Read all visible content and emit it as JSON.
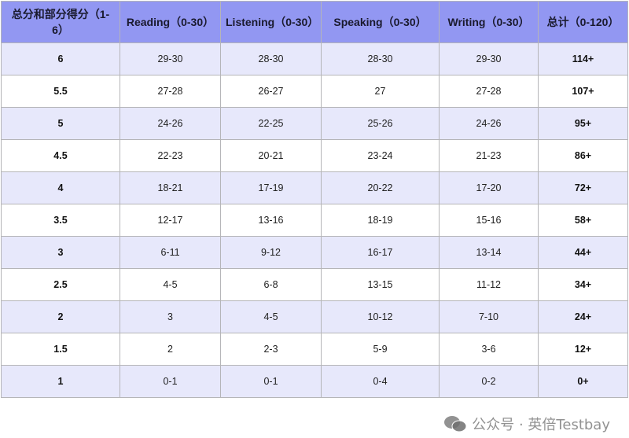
{
  "table": {
    "headers": [
      "总分和部分得分（1-6）",
      "Reading（0-30）",
      "Listening（0-30）",
      "Speaking（0-30）",
      "Writing（0-30）",
      "总计（0-120）"
    ],
    "rows": [
      [
        "6",
        "29-30",
        "28-30",
        "28-30",
        "29-30",
        "114+"
      ],
      [
        "5.5",
        "27-28",
        "26-27",
        "27",
        "27-28",
        "107+"
      ],
      [
        "5",
        "24-26",
        "22-25",
        "25-26",
        "24-26",
        "95+"
      ],
      [
        "4.5",
        "22-23",
        "20-21",
        "23-24",
        "21-23",
        "86+"
      ],
      [
        "4",
        "18-21",
        "17-19",
        "20-22",
        "17-20",
        "72+"
      ],
      [
        "3.5",
        "12-17",
        "13-16",
        "18-19",
        "15-16",
        "58+"
      ],
      [
        "3",
        "6-11",
        "9-12",
        "16-17",
        "13-14",
        "44+"
      ],
      [
        "2.5",
        "4-5",
        "6-8",
        "13-15",
        "11-12",
        "34+"
      ],
      [
        "2",
        "3",
        "4-5",
        "10-12",
        "7-10",
        "24+"
      ],
      [
        "1.5",
        "2",
        "2-3",
        "5-9",
        "3-6",
        "12+"
      ],
      [
        "1",
        "0-1",
        "0-1",
        "0-4",
        "0-2",
        "0+"
      ]
    ]
  },
  "watermark": {
    "text": "公众号 · 英倍Testbay",
    "icon": "wechat-icon"
  },
  "colors": {
    "header": "#9297f2",
    "row_alt": "#e7e8fb",
    "row": "#ffffff"
  }
}
